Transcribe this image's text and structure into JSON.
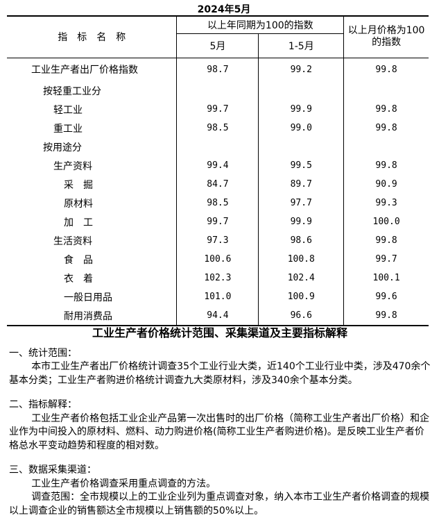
{
  "date": "2024年5月",
  "table": {
    "headers": {
      "name": "指　标　名　称",
      "yoy_group": "以上年同期为100的指数",
      "month": "5月",
      "cumulative": "1-5月",
      "mom": "以上月价格为100的指数"
    },
    "rows": [
      {
        "name": "工业生产者出厂价格指数",
        "level": 0,
        "month": "98.7",
        "cumulative": "99.2",
        "mom": "99.8"
      },
      {
        "name": "按轻重工业分",
        "level": 1,
        "month": "",
        "cumulative": "",
        "mom": ""
      },
      {
        "name": "轻工业",
        "level": 2,
        "month": "99.7",
        "cumulative": "99.9",
        "mom": "99.8"
      },
      {
        "name": "重工业",
        "level": 2,
        "month": "98.5",
        "cumulative": "99.0",
        "mom": "99.8"
      },
      {
        "name": "按用途分",
        "level": 1,
        "month": "",
        "cumulative": "",
        "mom": ""
      },
      {
        "name": "生产资料",
        "level": 2,
        "month": "99.4",
        "cumulative": "99.5",
        "mom": "99.8"
      },
      {
        "name": "采　掘",
        "level": 3,
        "month": "84.7",
        "cumulative": "89.7",
        "mom": "90.9"
      },
      {
        "name": "原材料",
        "level": 3,
        "month": "98.5",
        "cumulative": "97.7",
        "mom": "99.3"
      },
      {
        "name": "加　工",
        "level": 3,
        "month": "99.7",
        "cumulative": "99.9",
        "mom": "100.0"
      },
      {
        "name": "生活资料",
        "level": 2,
        "month": "97.3",
        "cumulative": "98.6",
        "mom": "99.8"
      },
      {
        "name": "食　品",
        "level": 3,
        "month": "100.6",
        "cumulative": "100.8",
        "mom": "99.7"
      },
      {
        "name": "衣　着",
        "level": 3,
        "month": "102.3",
        "cumulative": "102.4",
        "mom": "100.1"
      },
      {
        "name": "一般日用品",
        "level": 3,
        "month": "101.0",
        "cumulative": "100.9",
        "mom": "99.6"
      },
      {
        "name": "耐用消费品",
        "level": 3,
        "month": "94.4",
        "cumulative": "96.6",
        "mom": "99.8"
      }
    ]
  },
  "notes": {
    "title": "工业生产者价格统计范围、采集渠道及主要指标解释",
    "sections": [
      {
        "heading": "一、统计范围：",
        "paragraphs": [
          "本市工业生产者出厂价格统计调查35个工业行业大类，近140个工业行业中类，涉及470余个基本分类；工业生产者购进价格统计调查九大类原材料，涉及340余个基本分类。"
        ]
      },
      {
        "heading": "二、指标解释：",
        "paragraphs": [
          "工业生产者价格包括工业企业产品第一次出售时的出厂价格（简称工业生产者出厂价格）和企业作为中间投入的原材料、燃料、动力购进价格(简称工业生产者购进价格)。是反映工业生产者价格总水平变动趋势和程度的相对数。"
        ]
      },
      {
        "heading": "三、数据采集渠道：",
        "paragraphs": [
          "工业生产者价格调查采用重点调查的方法。",
          "调查范围：全市规模以上的工业企业列为重点调查对象，纳入本市工业生产者价格调查的规模以上调查企业的销售额达全市规模以上销售额的50%以上。"
        ]
      }
    ]
  }
}
